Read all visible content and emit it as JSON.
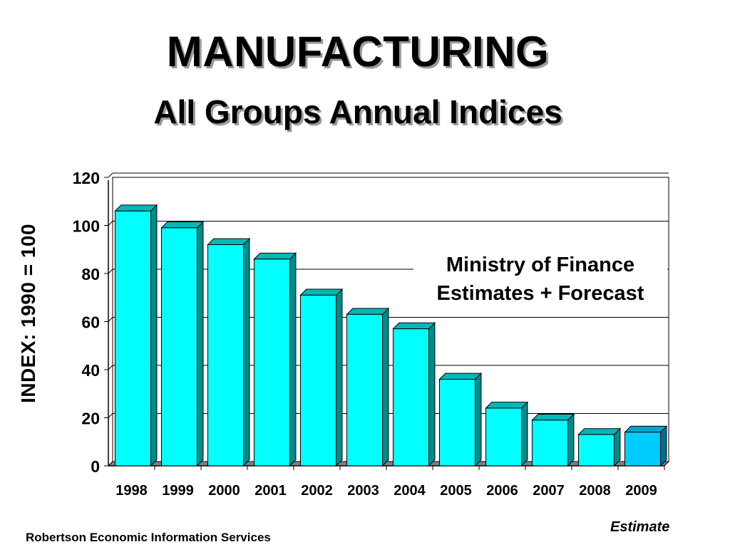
{
  "title": "MANUFACTURING",
  "subtitle": "All Groups Annual Indices",
  "footer": {
    "source": "Robertson Economic Information Services",
    "note": "Estimate"
  },
  "chart_data": {
    "type": "bar",
    "title": "MANUFACTURING",
    "subtitle": "All Groups Annual Indices",
    "xlabel": "",
    "ylabel": "INDEX: 1990 = 100",
    "ylim": [
      0,
      120
    ],
    "yticks": [
      "0",
      "20",
      "40",
      "60",
      "80",
      "100",
      "120"
    ],
    "grid": true,
    "categories": [
      "1998",
      "1999",
      "2000",
      "2001",
      "2002",
      "2003",
      "2004",
      "2005",
      "2006",
      "2007",
      "2008",
      "2009"
    ],
    "values": [
      106,
      99,
      92,
      86,
      71,
      63,
      57,
      36,
      24,
      19,
      13,
      14
    ],
    "bar_color": "#00ffff",
    "highlight_color": "#00ccff",
    "highlight_index": 11,
    "annotation": [
      "Ministry of Finance",
      "Estimates + Forecast"
    ]
  }
}
